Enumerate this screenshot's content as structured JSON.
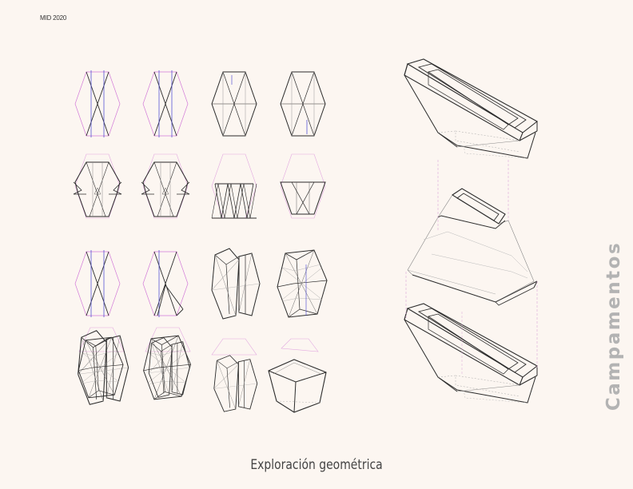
{
  "header": {
    "label": "MID 2020"
  },
  "caption": {
    "text": "Exploración geométrica"
  },
  "side_title": {
    "text": "Campamentos"
  },
  "colors": {
    "background": "#fcf6f1",
    "line": "#2b2b2b",
    "guide_magenta": "#d27ad8",
    "guide_blue": "#3f3fd0",
    "guide_pink": "#e7b6d6",
    "side_title": "#b3b3b3"
  },
  "figures": {
    "grid_rows": 4,
    "grid_cols": 4,
    "assembly_modules": 3
  }
}
